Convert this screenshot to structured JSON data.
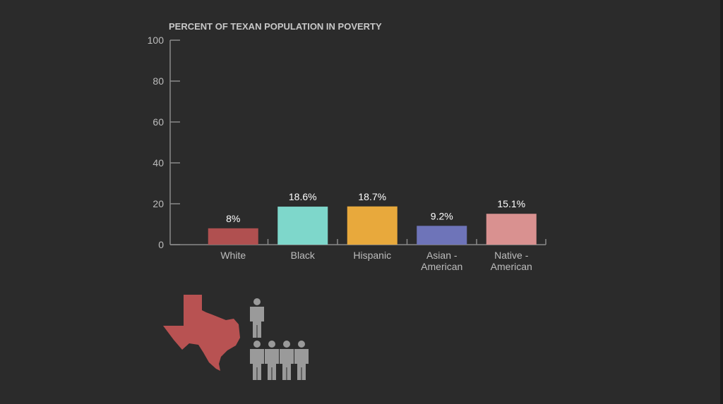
{
  "chart_data": {
    "type": "bar",
    "title": "PERCENT OF TEXAN POPULATION IN POVERTY",
    "xlabel": "",
    "ylabel": "",
    "ylim": [
      0,
      100
    ],
    "yticks": [
      "0",
      "20",
      "40",
      "60",
      "80",
      "100"
    ],
    "categories": [
      [
        "White"
      ],
      [
        "Black"
      ],
      [
        "Hispanic"
      ],
      [
        "Asian -",
        "American"
      ],
      [
        "Native -",
        "American"
      ]
    ],
    "values": [
      8,
      18.6,
      18.7,
      9.2,
      15.1
    ],
    "value_labels": [
      "8%",
      "18.6%",
      "18.7%",
      "9.2%",
      "15.1%"
    ],
    "colors": [
      "#b05050",
      "#7ed7cb",
      "#e8a93c",
      "#6e74b9",
      "#d99190"
    ],
    "grid": false,
    "legend": "none"
  },
  "illustration": {
    "state_icon": "texas-map-icon",
    "state_color": "#b85252",
    "people_icon": "person-icon",
    "people_color": "#9a9a9a"
  }
}
